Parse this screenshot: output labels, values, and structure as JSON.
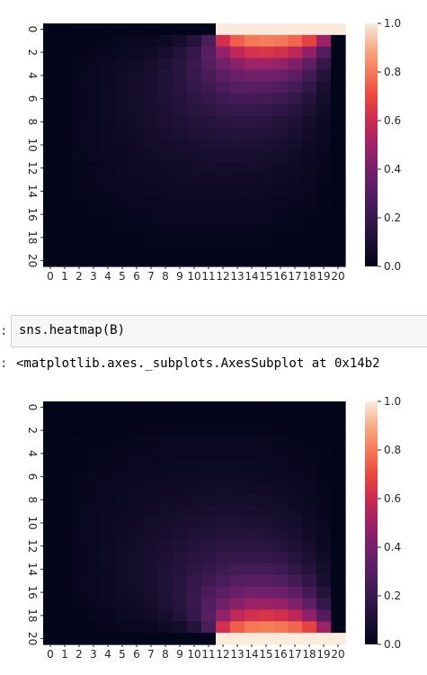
{
  "cells": {
    "input_prompt": ":",
    "input_code": "sns.heatmap(B)",
    "output_prompt": ":",
    "output_text": "<matplotlib.axes._subplots.AxesSubplot at 0x14b2"
  },
  "chart_data": [
    {
      "type": "heatmap",
      "title": "",
      "xlabel": "",
      "ylabel": "",
      "x_ticks": [
        "0",
        "1",
        "2",
        "3",
        "4",
        "5",
        "6",
        "7",
        "8",
        "9",
        "10",
        "11",
        "12",
        "13",
        "14",
        "15",
        "16",
        "17",
        "18",
        "19",
        "20"
      ],
      "y_ticks": [
        "0",
        "2",
        "4",
        "6",
        "8",
        "10",
        "12",
        "14",
        "16",
        "18",
        "20"
      ],
      "grid_size": [
        21,
        21
      ],
      "hot_edge": "top",
      "hot_columns": [
        12,
        20
      ],
      "boundary_value": 1.0,
      "colorbar_ticks": [
        "0.0",
        "0.2",
        "0.4",
        "0.6",
        "0.8",
        "1.0"
      ],
      "colorbar_range": [
        0,
        1
      ],
      "colormap": "rocket"
    },
    {
      "type": "heatmap",
      "title": "",
      "xlabel": "",
      "ylabel": "",
      "x_ticks": [
        "0",
        "1",
        "2",
        "3",
        "4",
        "5",
        "6",
        "7",
        "8",
        "9",
        "10",
        "11",
        "12",
        "13",
        "14",
        "15",
        "16",
        "17",
        "18",
        "19",
        "20"
      ],
      "y_ticks": [
        "0",
        "2",
        "4",
        "6",
        "8",
        "10",
        "12",
        "14",
        "16",
        "18",
        "20"
      ],
      "grid_size": [
        21,
        21
      ],
      "hot_edge": "bottom",
      "hot_columns": [
        12,
        20
      ],
      "boundary_value": 1.0,
      "colorbar_ticks": [
        "0.0",
        "0.2",
        "0.4",
        "0.6",
        "0.8",
        "1.0"
      ],
      "colorbar_range": [
        0,
        1
      ],
      "colormap": "rocket"
    }
  ]
}
